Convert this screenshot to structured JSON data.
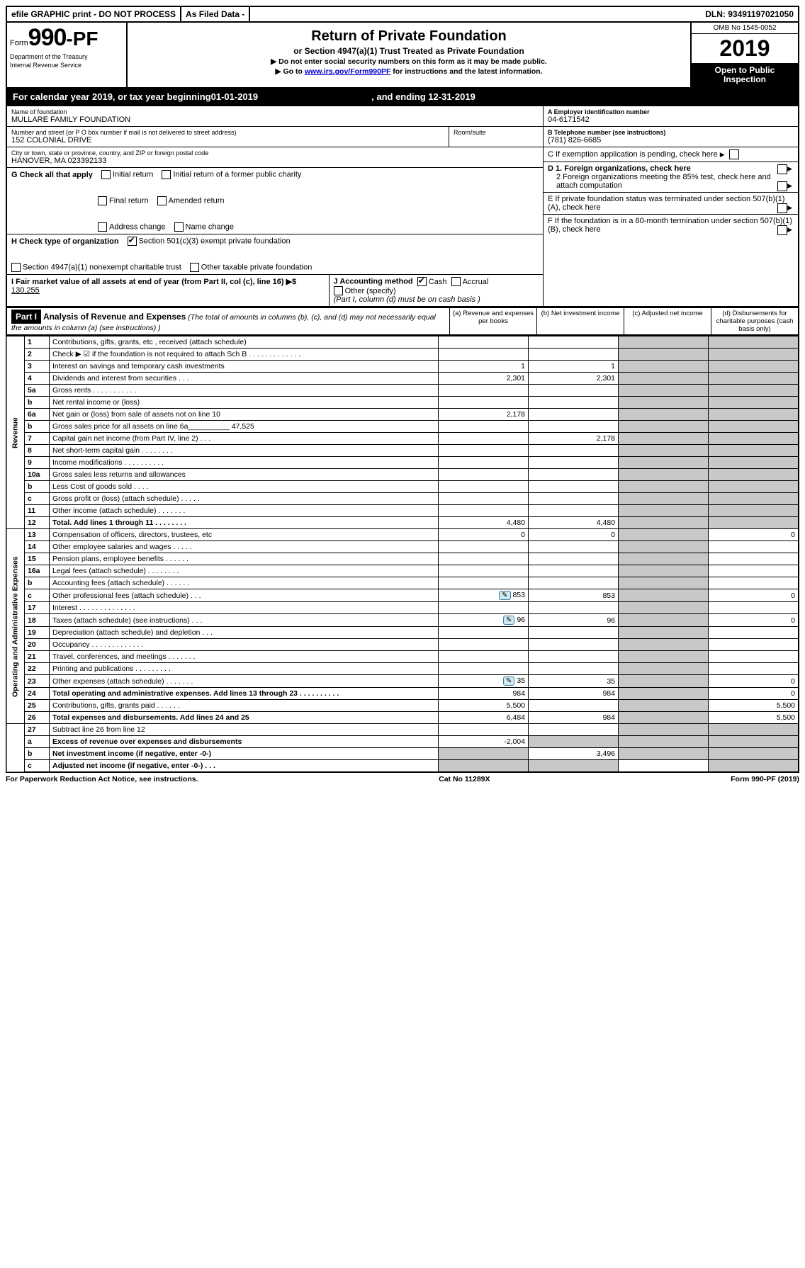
{
  "top": {
    "efile": "efile GRAPHIC print - DO NOT PROCESS",
    "asfiled": "As Filed Data -",
    "dln_label": "DLN:",
    "dln": "93491197021050"
  },
  "header": {
    "form_prefix": "Form",
    "form_num": "990-PF",
    "dept1": "Department of the Treasury",
    "dept2": "Internal Revenue Service",
    "title": "Return of Private Foundation",
    "subtitle": "or Section 4947(a)(1) Trust Treated as Private Foundation",
    "instr1": "▶ Do not enter social security numbers on this form as it may be made public.",
    "instr2_pre": "▶ Go to ",
    "instr2_link": "www.irs.gov/Form990PF",
    "instr2_post": " for instructions and the latest information.",
    "omb": "OMB No 1545-0052",
    "year": "2019",
    "open": "Open to Public Inspection"
  },
  "calyear": {
    "pre": "For calendar year 2019, or tax year beginning ",
    "begin": "01-01-2019",
    "mid": ", and ending ",
    "end": "12-31-2019"
  },
  "info": {
    "name_lbl": "Name of foundation",
    "name": "MULLARE FAMILY FOUNDATION",
    "addr_lbl": "Number and street (or P O  box number if mail is not delivered to street address)",
    "addr": "152 COLONIAL DRIVE",
    "room_lbl": "Room/suite",
    "city_lbl": "City or town, state or province, country, and ZIP or foreign postal code",
    "city": "HANOVER, MA  023392133",
    "A_lbl": "A Employer identification number",
    "A": "04-6171542",
    "B_lbl": "B Telephone number (see instructions)",
    "B": "(781) 826-6685",
    "C": "C If exemption application is pending, check here",
    "G_lbl": "G Check all that apply",
    "G_opts": [
      "Initial return",
      "Initial return of a former public charity",
      "Final return",
      "Amended return",
      "Address change",
      "Name change"
    ],
    "H_lbl": "H Check type of organization",
    "H_opt1": "Section 501(c)(3) exempt private foundation",
    "H_opt2": "Section 4947(a)(1) nonexempt charitable trust",
    "H_opt3": "Other taxable private foundation",
    "I_lbl": "I Fair market value of all assets at end of year (from Part II, col  (c), line 16) ▶$",
    "I_val": "130,255",
    "J_lbl": "J Accounting method",
    "J_cash": "Cash",
    "J_accrual": "Accrual",
    "J_other": "Other (specify)",
    "J_note": "(Part I, column (d) must be on cash basis )",
    "D1": "D 1. Foreign organizations, check here",
    "D2": "2 Foreign organizations meeting the 85% test, check here and attach computation",
    "E": "E  If private foundation status was terminated under section 507(b)(1)(A), check here",
    "F": "F  If the foundation is in a 60-month termination under section 507(b)(1)(B), check here"
  },
  "part1": {
    "label": "Part I",
    "title": "Analysis of Revenue and Expenses",
    "note": "(The total of amounts in columns (b), (c), and (d) may not necessarily equal the amounts in column (a) (see instructions) )",
    "col_a": "(a) Revenue and expenses per books",
    "col_b": "(b) Net investment income",
    "col_c": "(c) Adjusted net income",
    "col_d": "(d) Disbursements for charitable purposes (cash basis only)"
  },
  "sections": {
    "revenue": "Revenue",
    "expenses": "Operating and Administrative Expenses"
  },
  "rows": [
    {
      "sec": "rev",
      "n": "1",
      "d": "Contributions, gifts, grants, etc , received (attach schedule)"
    },
    {
      "sec": "rev",
      "n": "2",
      "d": "Check ▶ ☑ if the foundation is not required to attach Sch  B     .   .   .   .   .   .   .   .   .   .   .   .   ."
    },
    {
      "sec": "rev",
      "n": "3",
      "d": "Interest on savings and temporary cash investments",
      "a": "1",
      "b": "1"
    },
    {
      "sec": "rev",
      "n": "4",
      "d": "Dividends and interest from securities    .   .   .",
      "a": "2,301",
      "b": "2,301"
    },
    {
      "sec": "rev",
      "n": "5a",
      "d": "Gross rents    .   .   .   .   .   .   .   .   .   .   ."
    },
    {
      "sec": "rev",
      "n": "b",
      "d": "Net rental income or (loss)"
    },
    {
      "sec": "rev",
      "n": "6a",
      "d": "Net gain or (loss) from sale of assets not on line 10",
      "a": "2,178"
    },
    {
      "sec": "rev",
      "n": "b",
      "d": "Gross sales price for all assets on line 6a__________  47,525"
    },
    {
      "sec": "rev",
      "n": "7",
      "d": "Capital gain net income (from Part IV, line 2)   .   .   .",
      "b": "2,178"
    },
    {
      "sec": "rev",
      "n": "8",
      "d": "Net short-term capital gain  .   .   .   .   .   .   .   ."
    },
    {
      "sec": "rev",
      "n": "9",
      "d": "Income modifications .   .   .   .   .   .   .   .   .   ."
    },
    {
      "sec": "rev",
      "n": "10a",
      "d": "Gross sales less returns and allowances"
    },
    {
      "sec": "rev",
      "n": "b",
      "d": "Less  Cost of goods sold    .   .   .   ."
    },
    {
      "sec": "rev",
      "n": "c",
      "d": "Gross profit or (loss) (attach schedule)    .   .   .   .   ."
    },
    {
      "sec": "rev",
      "n": "11",
      "d": "Other income (attach schedule)    .   .   .   .   .   .   ."
    },
    {
      "sec": "rev",
      "n": "12",
      "d": "Total. Add lines 1 through 11   .   .   .   .   .   .   .   .",
      "a": "4,480",
      "b": "4,480",
      "bold": true
    },
    {
      "sec": "exp",
      "n": "13",
      "d": "Compensation of officers, directors, trustees, etc",
      "a": "0",
      "b": "0",
      "dd": "0"
    },
    {
      "sec": "exp",
      "n": "14",
      "d": "Other employee salaries and wages    .   .   .   .   ."
    },
    {
      "sec": "exp",
      "n": "15",
      "d": "Pension plans, employee benefits  .   .   .   .   .   ."
    },
    {
      "sec": "exp",
      "n": "16a",
      "d": "Legal fees (attach schedule) .   .   .   .   .   .   .   ."
    },
    {
      "sec": "exp",
      "n": "b",
      "d": "Accounting fees (attach schedule)  .   .   .   .   .   ."
    },
    {
      "sec": "exp",
      "n": "c",
      "d": "Other professional fees (attach schedule)    .   .   .",
      "a": "853",
      "b": "853",
      "dd": "0",
      "att": true
    },
    {
      "sec": "exp",
      "n": "17",
      "d": "Interest  .   .   .   .   .   .   .   .   .   .   .   .   .   ."
    },
    {
      "sec": "exp",
      "n": "18",
      "d": "Taxes (attach schedule) (see instructions)     .   .   .",
      "a": "96",
      "b": "96",
      "dd": "0",
      "att": true
    },
    {
      "sec": "exp",
      "n": "19",
      "d": "Depreciation (attach schedule) and depletion   .   .   ."
    },
    {
      "sec": "exp",
      "n": "20",
      "d": "Occupancy   .   .   .   .   .   .   .   .   .   .   .   .   ."
    },
    {
      "sec": "exp",
      "n": "21",
      "d": "Travel, conferences, and meetings .   .   .   .   .   .   ."
    },
    {
      "sec": "exp",
      "n": "22",
      "d": "Printing and publications .   .   .   .   .   .   .   .   ."
    },
    {
      "sec": "exp",
      "n": "23",
      "d": "Other expenses (attach schedule) .   .   .   .   .   .   .",
      "a": "35",
      "b": "35",
      "dd": "0",
      "att": true
    },
    {
      "sec": "exp",
      "n": "24",
      "d": "Total operating and administrative expenses. Add lines 13 through 23   .   .   .   .   .   .   .   .   .   .",
      "a": "984",
      "b": "984",
      "dd": "0",
      "bold": true
    },
    {
      "sec": "exp",
      "n": "25",
      "d": "Contributions, gifts, grants paid     .   .   .   .   .   .",
      "a": "5,500",
      "dd": "5,500"
    },
    {
      "sec": "exp",
      "n": "26",
      "d": "Total expenses and disbursements. Add lines 24 and 25",
      "a": "6,484",
      "b": "984",
      "dd": "5,500",
      "bold": true
    },
    {
      "sec": "net",
      "n": "27",
      "d": "Subtract line 26 from line 12"
    },
    {
      "sec": "net",
      "n": "a",
      "d": "Excess of revenue over expenses and disbursements",
      "a": "-2,004",
      "bold": true
    },
    {
      "sec": "net",
      "n": "b",
      "d": "Net investment income (if negative, enter -0-)",
      "b": "3,496",
      "bold": true
    },
    {
      "sec": "net",
      "n": "c",
      "d": "Adjusted net income (if negative, enter -0-)  .   .   .",
      "bold": true
    }
  ],
  "footer": {
    "left": "For Paperwork Reduction Act Notice, see instructions.",
    "mid": "Cat  No  11289X",
    "right": "Form 990-PF (2019)"
  },
  "colors": {
    "grey": "#c8c8c8",
    "link": "#0000cc",
    "attach_bg": "#d0e8f0",
    "attach_border": "#4080a0"
  }
}
